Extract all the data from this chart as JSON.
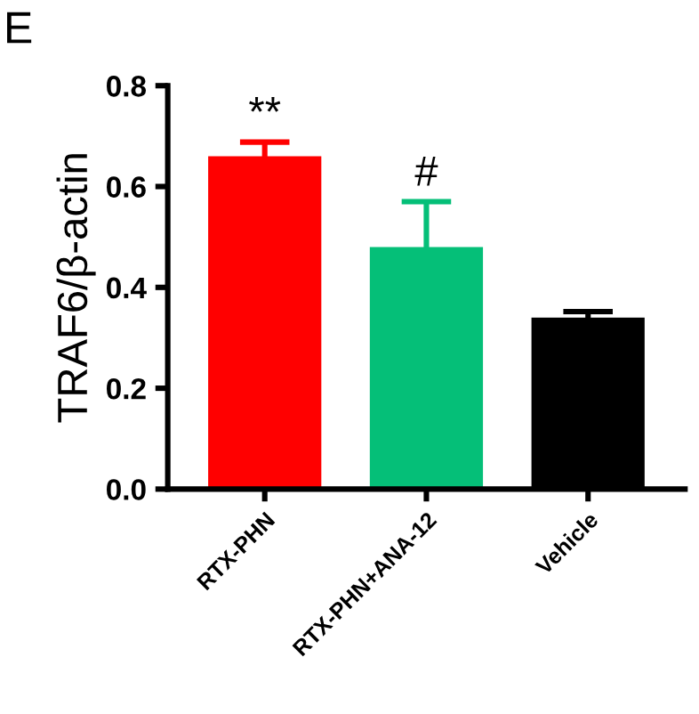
{
  "chart_data": {
    "type": "bar",
    "ylabel": "TRAF6/β-actin",
    "categories": [
      "RTX-PHN",
      "RTX-PHN+ANA-12",
      "Vehicle"
    ],
    "values": [
      0.66,
      0.48,
      0.34
    ],
    "errors": [
      0.028,
      0.09,
      0.012
    ],
    "colors": [
      "#ff0000",
      "#05bf78",
      "#000000"
    ],
    "ylim": [
      0,
      0.8
    ],
    "yticks": [
      {
        "value": 0,
        "label": "0.0"
      },
      0.2,
      0.4,
      0.6,
      0.8
    ],
    "grid": false,
    "annotations": [
      "E",
      "**",
      "#"
    ]
  }
}
